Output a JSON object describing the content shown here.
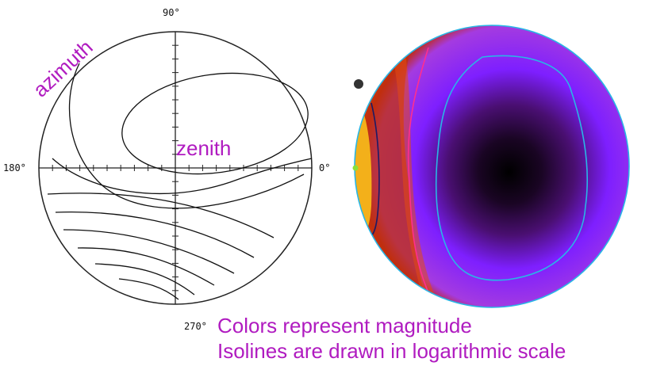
{
  "left_plot": {
    "angle_labels": {
      "top": "90°",
      "left": "180°",
      "right": "0°",
      "bottom": "270°"
    },
    "axis_labels": {
      "azimuth": "azimuth",
      "zenith": "zenith"
    }
  },
  "right_plot": {
    "colors": {
      "magnitude_high": "#ffd21a",
      "magnitude_mid": "#c02a10",
      "magnitude_low": "#7e1fff",
      "magnitude_min": "#000000",
      "isoline_cyan": "#29b6e6",
      "isoline_pink": "#ff2e8f",
      "isoline_navy": "#1c1a66"
    }
  },
  "captions": {
    "line1": "Colors represent magnitude",
    "line2": "Isolines are drawn in logarithmic scale"
  }
}
